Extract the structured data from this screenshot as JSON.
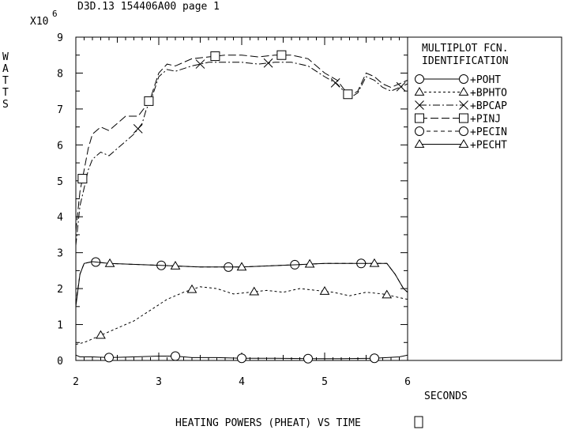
{
  "header": {
    "title": "D3D.13 154406A00 page 1",
    "multiplier_base": "X10",
    "multiplier_exp": "6"
  },
  "ylabel_letters": [
    "W",
    "A",
    "T",
    "T",
    "S"
  ],
  "xlabel": "SECONDS",
  "caption": "HEATING POWERS (PHEAT) VS TIME",
  "legend": {
    "heading_line1": "MULTIPLOT FCN.",
    "heading_line2": "IDENTIFICATION"
  },
  "chart_data": {
    "type": "line",
    "xlim": [
      2,
      6
    ],
    "ylim": [
      0,
      9
    ],
    "x_ticks": [
      "2",
      "3",
      "4",
      "5",
      "6"
    ],
    "y_ticks": [
      "0",
      "1",
      "2",
      "3",
      "4",
      "5",
      "6",
      "7",
      "8",
      "9"
    ],
    "grid": false,
    "legend_position": "right panel",
    "series": [
      {
        "name": "+POHT",
        "marker": "circle",
        "dash": "",
        "points": [
          [
            2.0,
            0.15
          ],
          [
            2.05,
            0.1
          ],
          [
            2.2,
            0.1
          ],
          [
            2.4,
            0.08
          ],
          [
            2.7,
            0.1
          ],
          [
            3.0,
            0.12
          ],
          [
            3.2,
            0.12
          ],
          [
            3.4,
            0.08
          ],
          [
            3.7,
            0.08
          ],
          [
            4.0,
            0.06
          ],
          [
            4.4,
            0.06
          ],
          [
            4.8,
            0.05
          ],
          [
            5.2,
            0.05
          ],
          [
            5.6,
            0.06
          ],
          [
            5.9,
            0.1
          ],
          [
            6.0,
            0.15
          ]
        ],
        "marker_x": [
          2.4,
          3.2,
          4.0,
          4.8,
          5.6
        ]
      },
      {
        "name": "+BPHTO",
        "marker": "triangle",
        "dash": "3,3",
        "points": [
          [
            2.0,
            0.45
          ],
          [
            2.1,
            0.5
          ],
          [
            2.3,
            0.7
          ],
          [
            2.5,
            0.9
          ],
          [
            2.7,
            1.1
          ],
          [
            2.9,
            1.4
          ],
          [
            3.1,
            1.7
          ],
          [
            3.3,
            1.9
          ],
          [
            3.5,
            2.05
          ],
          [
            3.7,
            2.0
          ],
          [
            3.9,
            1.85
          ],
          [
            4.1,
            1.9
          ],
          [
            4.3,
            1.95
          ],
          [
            4.5,
            1.9
          ],
          [
            4.7,
            2.0
          ],
          [
            4.9,
            1.95
          ],
          [
            5.1,
            1.9
          ],
          [
            5.3,
            1.8
          ],
          [
            5.5,
            1.9
          ],
          [
            5.7,
            1.85
          ],
          [
            5.9,
            1.75
          ],
          [
            6.0,
            1.7
          ]
        ],
        "marker_x": [
          2.3,
          3.4,
          4.15,
          5.0,
          5.75
        ]
      },
      {
        "name": "+BPCAP",
        "marker": "cross",
        "dash": "9,3,2,3",
        "points": [
          [
            2.0,
            3.2
          ],
          [
            2.05,
            4.3
          ],
          [
            2.1,
            4.8
          ],
          [
            2.15,
            5.3
          ],
          [
            2.2,
            5.6
          ],
          [
            2.3,
            5.8
          ],
          [
            2.4,
            5.7
          ],
          [
            2.5,
            5.9
          ],
          [
            2.6,
            6.1
          ],
          [
            2.7,
            6.3
          ],
          [
            2.8,
            6.6
          ],
          [
            2.85,
            7.0
          ],
          [
            2.9,
            7.2
          ],
          [
            3.0,
            7.9
          ],
          [
            3.1,
            8.1
          ],
          [
            3.2,
            8.05
          ],
          [
            3.4,
            8.2
          ],
          [
            3.6,
            8.3
          ],
          [
            3.8,
            8.3
          ],
          [
            4.0,
            8.3
          ],
          [
            4.2,
            8.25
          ],
          [
            4.4,
            8.3
          ],
          [
            4.6,
            8.3
          ],
          [
            4.8,
            8.2
          ],
          [
            5.0,
            7.9
          ],
          [
            5.15,
            7.7
          ],
          [
            5.25,
            7.45
          ],
          [
            5.3,
            7.3
          ],
          [
            5.4,
            7.45
          ],
          [
            5.5,
            7.9
          ],
          [
            5.6,
            7.8
          ],
          [
            5.7,
            7.6
          ],
          [
            5.8,
            7.5
          ],
          [
            5.9,
            7.6
          ],
          [
            6.0,
            7.7
          ]
        ],
        "marker_x": [
          2.75,
          3.5,
          4.32,
          5.13,
          5.92
        ]
      },
      {
        "name": "+PINJ",
        "marker": "square",
        "dash": "10,4",
        "points": [
          [
            2.0,
            3.6
          ],
          [
            2.05,
            4.7
          ],
          [
            2.1,
            5.3
          ],
          [
            2.15,
            5.9
          ],
          [
            2.2,
            6.3
          ],
          [
            2.3,
            6.5
          ],
          [
            2.4,
            6.4
          ],
          [
            2.5,
            6.6
          ],
          [
            2.6,
            6.8
          ],
          [
            2.75,
            6.8
          ],
          [
            2.85,
            7.1
          ],
          [
            2.9,
            7.3
          ],
          [
            3.0,
            8.0
          ],
          [
            3.1,
            8.25
          ],
          [
            3.2,
            8.2
          ],
          [
            3.4,
            8.4
          ],
          [
            3.6,
            8.45
          ],
          [
            3.8,
            8.5
          ],
          [
            4.0,
            8.5
          ],
          [
            4.2,
            8.45
          ],
          [
            4.4,
            8.5
          ],
          [
            4.6,
            8.5
          ],
          [
            4.8,
            8.4
          ],
          [
            5.0,
            8.0
          ],
          [
            5.15,
            7.8
          ],
          [
            5.25,
            7.5
          ],
          [
            5.3,
            7.35
          ],
          [
            5.4,
            7.5
          ],
          [
            5.5,
            8.0
          ],
          [
            5.6,
            7.9
          ],
          [
            5.7,
            7.7
          ],
          [
            5.8,
            7.6
          ],
          [
            5.9,
            7.7
          ],
          [
            6.0,
            7.8
          ]
        ],
        "marker_x": [
          2.08,
          2.88,
          3.68,
          4.48,
          5.28
        ]
      },
      {
        "name": "+PECIN",
        "marker": "circle",
        "dash": "5,4",
        "points": [
          [
            2.0,
            1.6
          ],
          [
            2.05,
            2.4
          ],
          [
            2.1,
            2.7
          ],
          [
            2.2,
            2.75
          ],
          [
            2.4,
            2.7
          ],
          [
            3.0,
            2.65
          ],
          [
            3.5,
            2.6
          ],
          [
            4.0,
            2.6
          ],
          [
            4.5,
            2.65
          ],
          [
            5.0,
            2.7
          ],
          [
            5.5,
            2.7
          ],
          [
            5.75,
            2.7
          ],
          [
            5.85,
            2.4
          ],
          [
            5.95,
            2.0
          ],
          [
            6.0,
            1.9
          ]
        ],
        "marker_x": [
          2.24,
          3.03,
          3.84,
          4.64,
          5.44
        ]
      },
      {
        "name": "+PECHT",
        "marker": "triangle",
        "dash": "",
        "points": [
          [
            2.0,
            1.5
          ],
          [
            2.05,
            2.4
          ],
          [
            2.1,
            2.7
          ],
          [
            2.2,
            2.75
          ],
          [
            2.4,
            2.7
          ],
          [
            3.0,
            2.65
          ],
          [
            3.5,
            2.6
          ],
          [
            4.0,
            2.6
          ],
          [
            4.5,
            2.65
          ],
          [
            5.0,
            2.7
          ],
          [
            5.5,
            2.7
          ],
          [
            5.75,
            2.7
          ],
          [
            5.85,
            2.4
          ],
          [
            5.95,
            2.0
          ],
          [
            6.0,
            1.9
          ]
        ],
        "marker_x": [
          2.41,
          3.2,
          4.0,
          4.82,
          5.6
        ]
      }
    ]
  }
}
